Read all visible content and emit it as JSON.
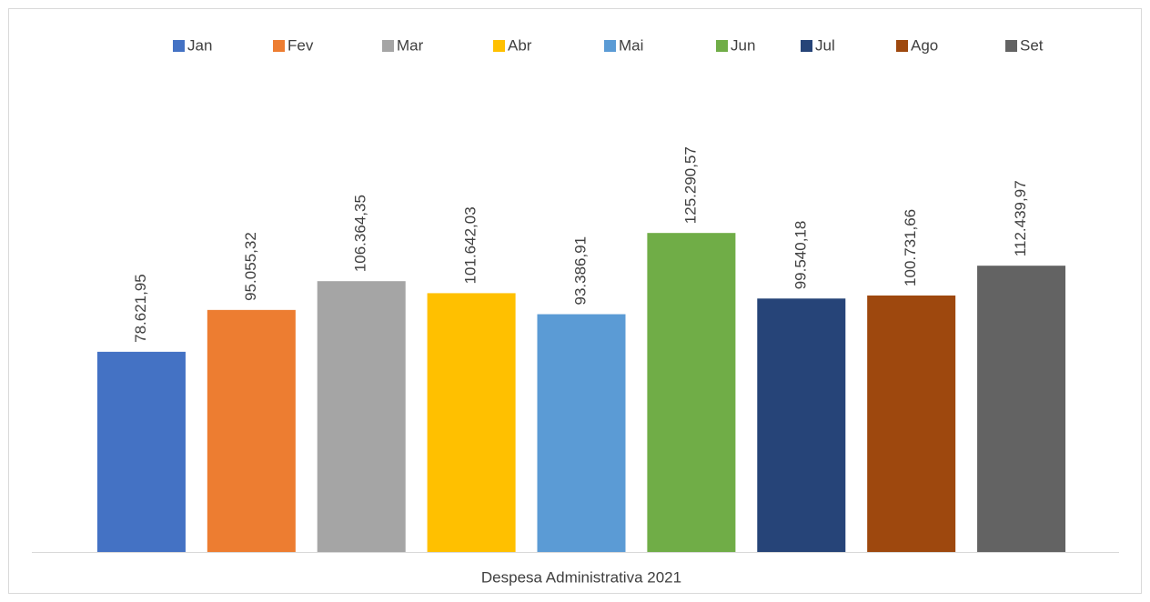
{
  "chart_data": {
    "type": "bar",
    "categories": [
      "Despesa Administrativa 2021"
    ],
    "series": [
      {
        "name": "Jan",
        "color": "#4472c4",
        "values": [
          78621.95
        ],
        "value_labels": [
          "78.621,95"
        ]
      },
      {
        "name": "Fev",
        "color": "#ed7d31",
        "values": [
          95055.32
        ],
        "value_labels": [
          "95.055,32"
        ]
      },
      {
        "name": "Mar",
        "color": "#a5a5a5",
        "values": [
          106364.35
        ],
        "value_labels": [
          "106.364,35"
        ]
      },
      {
        "name": "Abr",
        "color": "#ffc000",
        "values": [
          101642.03
        ],
        "value_labels": [
          "101.642,03"
        ]
      },
      {
        "name": "Mai",
        "color": "#5b9bd5",
        "values": [
          93386.91
        ],
        "value_labels": [
          "93.386,91"
        ]
      },
      {
        "name": "Jun",
        "color": "#70ad47",
        "values": [
          125290.57
        ],
        "value_labels": [
          "125.290,57"
        ]
      },
      {
        "name": "Jul",
        "color": "#264478",
        "values": [
          99540.18
        ],
        "value_labels": [
          "99.540,18"
        ]
      },
      {
        "name": "Ago",
        "color": "#9e480e",
        "values": [
          100731.66
        ],
        "value_labels": [
          "100.731,66"
        ]
      },
      {
        "name": "Set",
        "color": "#636363",
        "values": [
          112439.97
        ],
        "value_labels": [
          "112.439,97"
        ]
      }
    ],
    "ylim": [
      0,
      140000
    ],
    "legend": "top"
  }
}
